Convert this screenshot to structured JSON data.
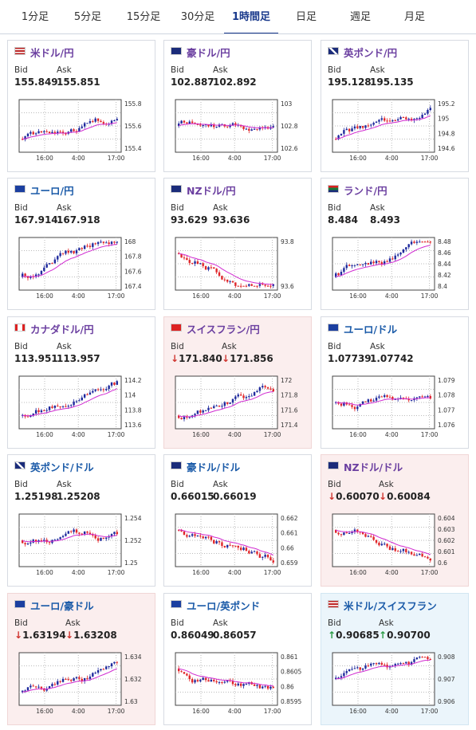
{
  "tabs": [
    {
      "label": "1分足",
      "active": false
    },
    {
      "label": "5分足",
      "active": false
    },
    {
      "label": "15分足",
      "active": false
    },
    {
      "label": "30分足",
      "active": false
    },
    {
      "label": "1時間足",
      "active": true
    },
    {
      "label": "日足",
      "active": false
    },
    {
      "label": "週足",
      "active": false
    },
    {
      "label": "月足",
      "active": false
    }
  ],
  "colors": {
    "up_candle": "#1f2a9e",
    "down_candle": "#e0262a",
    "ma_line": "#d12bd1",
    "card_down_bg": "#fbeeee",
    "card_up_bg": "#ebf5fb",
    "arrow_down": "#d0352f",
    "arrow_up": "#2a9a44"
  },
  "labels": {
    "bid": "Bid",
    "ask": "Ask"
  },
  "cards": [
    {
      "name": "usd-jpy",
      "pair": "米ドル/円",
      "flag": "us-flag",
      "bid": "155.849",
      "ask": "155.851",
      "state": "normal",
      "arrow": "",
      "y_ticks": [
        "155.8",
        "155.6",
        "155.4"
      ],
      "x_ticks": [
        "16:00",
        "4:00",
        "17:00"
      ],
      "trend": "up"
    },
    {
      "name": "aud-jpy",
      "pair": "豪ドル/円",
      "flag": "au-flag",
      "bid": "102.887",
      "ask": "102.892",
      "state": "normal",
      "arrow": "",
      "y_ticks": [
        "103",
        "102.8",
        "102.6"
      ],
      "x_ticks": [
        "16:00",
        "4:00",
        "17:00"
      ],
      "trend": "flat"
    },
    {
      "name": "gbp-jpy",
      "pair": "英ポンド/円",
      "flag": "gb-flag",
      "bid": "195.128",
      "ask": "195.135",
      "state": "normal",
      "arrow": "",
      "y_ticks": [
        "195.2",
        "195",
        "194.8",
        "194.6"
      ],
      "x_ticks": [
        "16:00",
        "4:00",
        "17:00"
      ],
      "trend": "up"
    },
    {
      "name": "eur-jpy",
      "pair": "ユーロ/円",
      "flag": "eu-flag",
      "bid": "167.914",
      "ask": "167.918",
      "state": "normal",
      "arrow": "",
      "y_ticks": [
        "168",
        "167.8",
        "167.6",
        "167.4"
      ],
      "x_ticks": [
        "16:00",
        "4:00",
        "17:00"
      ],
      "trend": "up"
    },
    {
      "name": "nzd-jpy",
      "pair": "NZドル/円",
      "flag": "nz-flag",
      "bid": "93.629",
      "ask": "93.636",
      "state": "normal",
      "arrow": "",
      "y_ticks": [
        "93.8",
        "93.6"
      ],
      "x_ticks": [
        "16:00",
        "4:00",
        "17:00"
      ],
      "trend": "down"
    },
    {
      "name": "zar-jpy",
      "pair": "ランド/円",
      "flag": "za-flag",
      "bid": "8.484",
      "ask": "8.493",
      "state": "normal",
      "arrow": "",
      "y_ticks": [
        "8.48",
        "8.46",
        "8.44",
        "8.42",
        "8.4"
      ],
      "x_ticks": [
        "16:00",
        "4:00",
        "17:00"
      ],
      "trend": "up"
    },
    {
      "name": "cad-jpy",
      "pair": "カナダドル/円",
      "flag": "ca-flag",
      "bid": "113.951",
      "ask": "113.957",
      "state": "normal",
      "arrow": "",
      "y_ticks": [
        "114.2",
        "114",
        "113.8",
        "113.6"
      ],
      "x_ticks": [
        "16:00",
        "4:00",
        "17:00"
      ],
      "trend": "up"
    },
    {
      "name": "chf-jpy",
      "pair": "スイスフラン/円",
      "flag": "ch-flag",
      "bid": "171.840",
      "ask": "171.856",
      "state": "down",
      "arrow": "↓",
      "y_ticks": [
        "172",
        "171.8",
        "171.6",
        "171.4"
      ],
      "x_ticks": [
        "16:00",
        "4:00",
        "17:00"
      ],
      "trend": "up"
    },
    {
      "name": "eur-usd",
      "pair": "ユーロ/ドル",
      "flag": "eu-flag",
      "bid": "1.07739",
      "ask": "1.07742",
      "state": "normal",
      "arrow": "",
      "y_ticks": [
        "1.079",
        "1.078",
        "1.077",
        "1.076"
      ],
      "x_ticks": [
        "16:00",
        "4:00",
        "17:00"
      ],
      "trend": "flat"
    },
    {
      "name": "gbp-usd",
      "pair": "英ポンド/ドル",
      "flag": "gb-flag",
      "bid": "1.25198",
      "ask": "1.25208",
      "state": "normal",
      "arrow": "",
      "y_ticks": [
        "1.254",
        "1.252",
        "1.25"
      ],
      "x_ticks": [
        "16:00",
        "4:00",
        "17:00"
      ],
      "trend": "flat"
    },
    {
      "name": "aud-usd",
      "pair": "豪ドル/ドル",
      "flag": "au-flag",
      "bid": "0.66015",
      "ask": "0.66019",
      "state": "normal",
      "arrow": "",
      "y_ticks": [
        "0.662",
        "0.661",
        "0.66",
        "0.659"
      ],
      "x_ticks": [
        "16:00",
        "4:00",
        "17:00"
      ],
      "trend": "down"
    },
    {
      "name": "nzd-usd",
      "pair": "NZドル/ドル",
      "flag": "nz-flag",
      "bid": "0.60070",
      "ask": "0.60084",
      "state": "down",
      "arrow": "↓",
      "y_ticks": [
        "0.604",
        "0.603",
        "0.602",
        "0.601",
        "0.6"
      ],
      "x_ticks": [
        "16:00",
        "4:00",
        "17:00"
      ],
      "trend": "down"
    },
    {
      "name": "eur-aud",
      "pair": "ユーロ/豪ドル",
      "flag": "eu-flag",
      "bid": "1.63194",
      "ask": "1.63208",
      "state": "down",
      "arrow": "↓",
      "y_ticks": [
        "1.634",
        "1.632",
        "1.63"
      ],
      "x_ticks": [
        "16:00",
        "4:00",
        "17:00"
      ],
      "trend": "up"
    },
    {
      "name": "eur-gbp",
      "pair": "ユーロ/英ポンド",
      "flag": "eu-flag",
      "bid": "0.86049",
      "ask": "0.86057",
      "state": "normal",
      "arrow": "",
      "y_ticks": [
        "0.861",
        "0.8605",
        "0.86",
        "0.8595"
      ],
      "x_ticks": [
        "16:00",
        "4:00",
        "17:00"
      ],
      "trend": "down"
    },
    {
      "name": "usd-chf",
      "pair": "米ドル/スイスフラン",
      "flag": "us-flag",
      "bid": "0.90685",
      "ask": "0.90700",
      "state": "up",
      "arrow": "↑",
      "y_ticks": [
        "0.908",
        "0.907",
        "0.906"
      ],
      "x_ticks": [
        "16:00",
        "4:00",
        "17:00"
      ],
      "trend": "flat"
    }
  ]
}
